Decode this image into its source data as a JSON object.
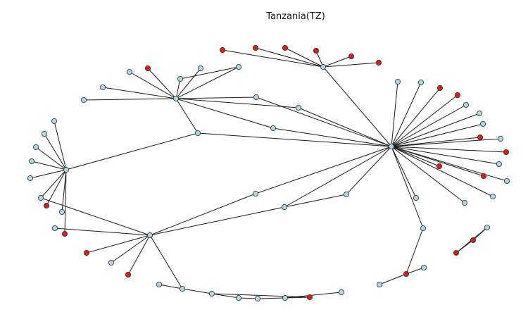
{
  "title": "Tanzania(TZ)",
  "colors": {
    "default_node": "#add8e6",
    "highlight_node": "#dd1c1c",
    "edge": "#1a1a1a",
    "node_outline": "#2a2a2a"
  },
  "graph": {
    "node_count": 84,
    "edge_count": 80
  }
}
